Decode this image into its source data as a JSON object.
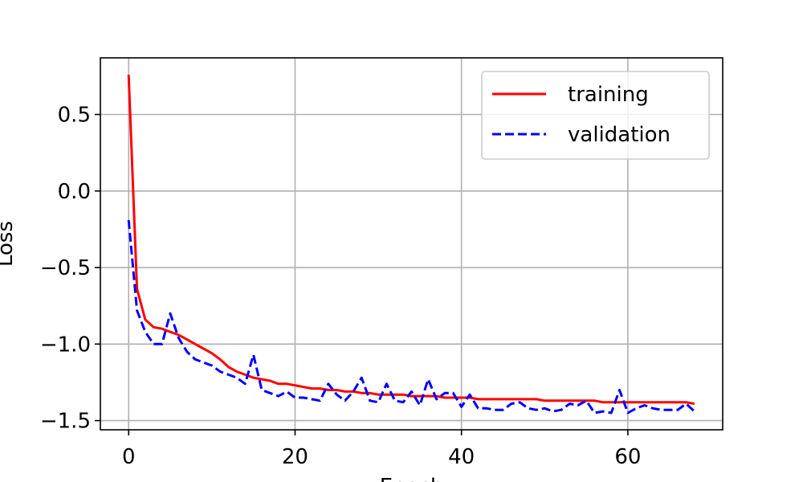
{
  "chart_data": {
    "type": "line",
    "title": "",
    "xlabel": "Epoch",
    "ylabel": "Loss",
    "xlim": [
      -3.4,
      71.4
    ],
    "ylim": [
      -1.56,
      0.87
    ],
    "xticks": [
      0,
      20,
      40,
      60
    ],
    "yticks": [
      0.5,
      0.0,
      -0.5,
      -1.0,
      -1.5
    ],
    "xtick_labels": [
      "0",
      "20",
      "40",
      "60"
    ],
    "ytick_labels": [
      "0.5",
      "0.0",
      "−0.5",
      "−1.0",
      "−1.5"
    ],
    "grid": true,
    "legend_position": "top-right",
    "x": [
      0,
      1,
      2,
      3,
      4,
      5,
      6,
      7,
      8,
      9,
      10,
      11,
      12,
      13,
      14,
      15,
      16,
      17,
      18,
      19,
      20,
      21,
      22,
      23,
      24,
      25,
      26,
      27,
      28,
      29,
      30,
      31,
      32,
      33,
      34,
      35,
      36,
      37,
      38,
      39,
      40,
      41,
      42,
      43,
      44,
      45,
      46,
      47,
      48,
      49,
      50,
      51,
      52,
      53,
      54,
      55,
      56,
      57,
      58,
      59,
      60,
      61,
      62,
      63,
      64,
      65,
      66,
      67,
      68
    ],
    "series": [
      {
        "name": "training",
        "color": "#ff0000",
        "style": "solid",
        "values": [
          0.76,
          -0.64,
          -0.84,
          -0.89,
          -0.9,
          -0.92,
          -0.94,
          -0.97,
          -1.0,
          -1.03,
          -1.06,
          -1.1,
          -1.15,
          -1.18,
          -1.2,
          -1.22,
          -1.23,
          -1.24,
          -1.26,
          -1.26,
          -1.27,
          -1.28,
          -1.29,
          -1.29,
          -1.3,
          -1.3,
          -1.31,
          -1.31,
          -1.32,
          -1.32,
          -1.33,
          -1.33,
          -1.33,
          -1.33,
          -1.34,
          -1.34,
          -1.34,
          -1.34,
          -1.35,
          -1.35,
          -1.35,
          -1.35,
          -1.36,
          -1.36,
          -1.36,
          -1.36,
          -1.36,
          -1.36,
          -1.36,
          -1.36,
          -1.37,
          -1.37,
          -1.37,
          -1.37,
          -1.37,
          -1.37,
          -1.37,
          -1.38,
          -1.38,
          -1.38,
          -1.38,
          -1.38,
          -1.38,
          -1.38,
          -1.38,
          -1.38,
          -1.38,
          -1.38,
          -1.39
        ]
      },
      {
        "name": "validation",
        "color": "#0000ff",
        "style": "dashed",
        "values": [
          -0.19,
          -0.78,
          -0.92,
          -1.0,
          -1.0,
          -0.8,
          -0.96,
          -1.05,
          -1.1,
          -1.12,
          -1.14,
          -1.18,
          -1.2,
          -1.22,
          -1.26,
          -1.07,
          -1.3,
          -1.32,
          -1.34,
          -1.31,
          -1.35,
          -1.35,
          -1.36,
          -1.37,
          -1.26,
          -1.33,
          -1.37,
          -1.31,
          -1.22,
          -1.37,
          -1.38,
          -1.26,
          -1.37,
          -1.38,
          -1.31,
          -1.4,
          -1.23,
          -1.36,
          -1.32,
          -1.32,
          -1.41,
          -1.33,
          -1.42,
          -1.42,
          -1.43,
          -1.43,
          -1.39,
          -1.38,
          -1.42,
          -1.43,
          -1.42,
          -1.44,
          -1.43,
          -1.39,
          -1.4,
          -1.37,
          -1.45,
          -1.44,
          -1.45,
          -1.3,
          -1.45,
          -1.42,
          -1.4,
          -1.42,
          -1.43,
          -1.43,
          -1.43,
          -1.39,
          -1.44
        ]
      }
    ]
  }
}
